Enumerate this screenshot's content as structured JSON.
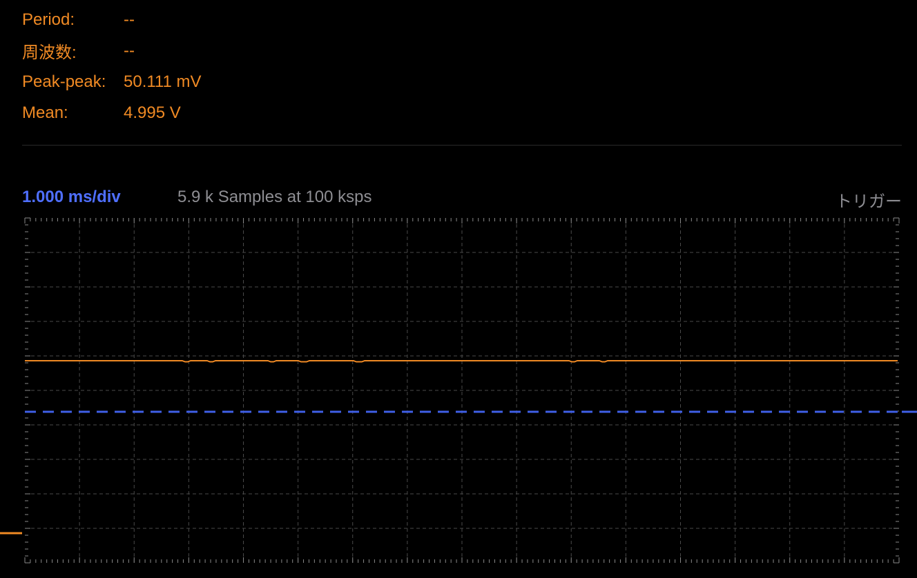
{
  "measurements": [
    {
      "label": "Period:",
      "value": "--"
    },
    {
      "label": "周波数:",
      "value": "--"
    },
    {
      "label": "Peak-peak:",
      "value": "50.111 mV"
    },
    {
      "label": "Mean:",
      "value": "4.995 V"
    }
  ],
  "status": {
    "timebase": "1.000 ms/div",
    "samples": "5.9 k Samples at 100 ksps",
    "trigger_label": "トリガー"
  },
  "scope": {
    "horizontal_divisions": 16,
    "vertical_divisions": 10,
    "channel_color": "#f08a24",
    "trigger_color": "#3f5fe6",
    "grid_color": "#4a4a4a",
    "tick_color": "#8a8a8a"
  }
}
